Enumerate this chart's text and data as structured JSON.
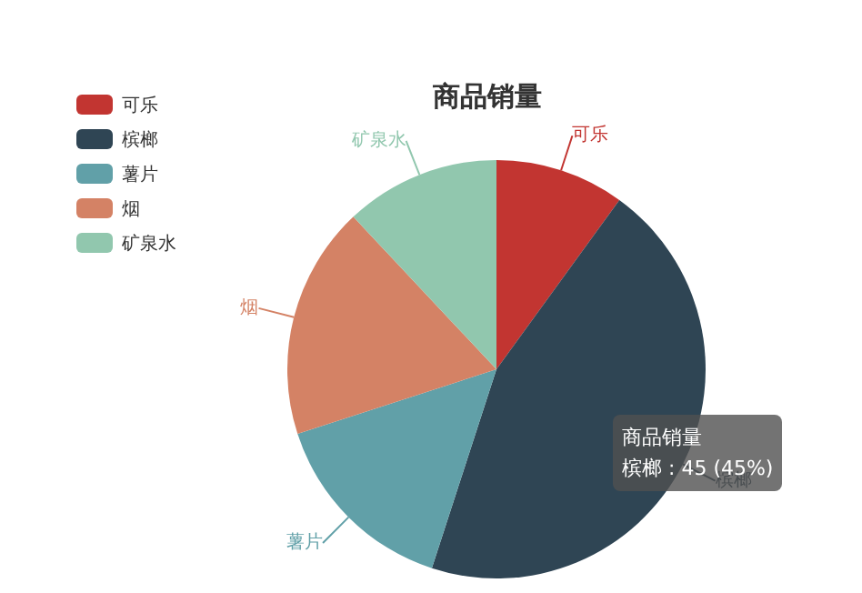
{
  "chart_data": {
    "type": "pie",
    "title": "商品销量",
    "categories": [
      "可乐",
      "槟榔",
      "薯片",
      "烟",
      "矿泉水"
    ],
    "values": [
      10,
      45,
      15,
      18,
      12
    ],
    "colors": [
      "#c23531",
      "#2f4554",
      "#61a0a8",
      "#d48265",
      "#91c7ae"
    ],
    "legend": "top left",
    "annotations": [
      "商品销量",
      "槟榔 : 45 (45%)"
    ]
  }
}
